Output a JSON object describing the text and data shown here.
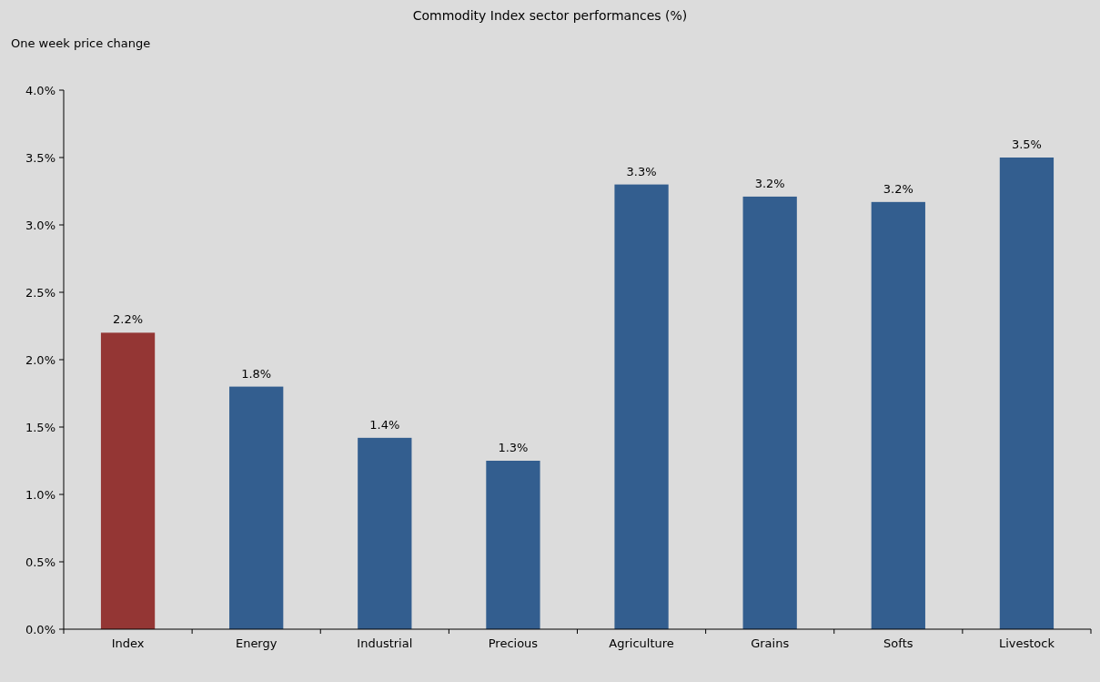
{
  "chart_data": {
    "type": "bar",
    "title": "Commodity Index sector performances (%)",
    "ylabel": "One week price change",
    "categories": [
      "Index",
      "Energy",
      "Industrial",
      "Precious",
      "Agriculture",
      "Grains",
      "Softs",
      "Livestock"
    ],
    "values": [
      2.2,
      1.8,
      1.42,
      1.25,
      3.3,
      3.21,
      3.17,
      3.5
    ],
    "colors": [
      "#943634",
      "#335e8f",
      "#335e8f",
      "#335e8f",
      "#335e8f",
      "#335e8f",
      "#335e8f",
      "#335e8f"
    ],
    "value_labels": [
      "2.2%",
      "1.8%",
      "1.4%",
      "1.3%",
      "3.3%",
      "3.2%",
      "3.2%",
      "3.5%"
    ],
    "ylim": [
      0,
      4
    ],
    "yticks": [
      {
        "value": 0,
        "label": "0.0%"
      },
      {
        "value": 0.5,
        "label": "0.5%"
      },
      {
        "value": 1,
        "label": "1.0%"
      },
      {
        "value": 1.5,
        "label": "1.5%"
      },
      {
        "value": 2,
        "label": "2.0%"
      },
      {
        "value": 2.5,
        "label": "2.5%"
      },
      {
        "value": 3,
        "label": "3.0%"
      },
      {
        "value": 3.5,
        "label": "3.5%"
      },
      {
        "value": 4,
        "label": "4.0%"
      }
    ],
    "grid": false
  }
}
